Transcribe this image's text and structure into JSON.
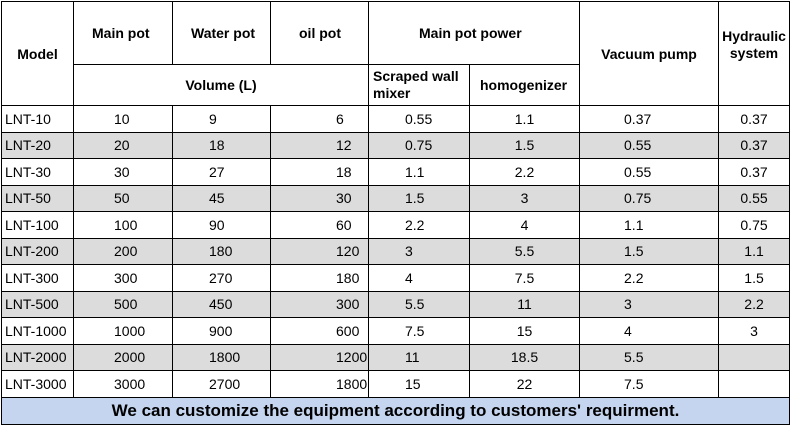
{
  "headers": {
    "model": "Model",
    "main_pot": "Main pot",
    "water_pot": "Water pot",
    "oil_pot": "oil pot",
    "main_pot_power": "Main pot power",
    "vacuum_pump": "Vacuum pump",
    "hydraulic_system": "Hydraulic system",
    "volume": "Volume (L)",
    "scraped_wall_mixer": "Scraped wall mixer",
    "homogenizer": "homogenizer"
  },
  "rows": [
    {
      "model": "LNT-10",
      "main": "10",
      "water": "9",
      "oil": "6",
      "scraped": "0.55",
      "homogenizer": "1.1",
      "vacuum": "0.37",
      "hydraulic": "0.37"
    },
    {
      "model": "LNT-20",
      "main": "20",
      "water": "18",
      "oil": "12",
      "scraped": "0.75",
      "homogenizer": "1.5",
      "vacuum": "0.55",
      "hydraulic": "0.37"
    },
    {
      "model": "LNT-30",
      "main": "30",
      "water": "27",
      "oil": "18",
      "scraped": "1.1",
      "homogenizer": "2.2",
      "vacuum": "0.55",
      "hydraulic": "0.37"
    },
    {
      "model": "LNT-50",
      "main": "50",
      "water": "45",
      "oil": "30",
      "scraped": "1.5",
      "homogenizer": "3",
      "vacuum": "0.75",
      "hydraulic": "0.55"
    },
    {
      "model": "LNT-100",
      "main": "100",
      "water": "90",
      "oil": "60",
      "scraped": "2.2",
      "homogenizer": "4",
      "vacuum": "1.1",
      "hydraulic": "0.75"
    },
    {
      "model": "LNT-200",
      "main": "200",
      "water": "180",
      "oil": "120",
      "scraped": "3",
      "homogenizer": "5.5",
      "vacuum": "1.5",
      "hydraulic": "1.1"
    },
    {
      "model": "LNT-300",
      "main": "300",
      "water": "270",
      "oil": "180",
      "scraped": "4",
      "homogenizer": "7.5",
      "vacuum": "2.2",
      "hydraulic": "1.5"
    },
    {
      "model": "LNT-500",
      "main": "500",
      "water": "450",
      "oil": "300",
      "scraped": "5.5",
      "homogenizer": "11",
      "vacuum": "3",
      "hydraulic": "2.2"
    },
    {
      "model": "LNT-1000",
      "main": "1000",
      "water": "900",
      "oil": "600",
      "scraped": "7.5",
      "homogenizer": "15",
      "vacuum": "4",
      "hydraulic": "3"
    },
    {
      "model": "LNT-2000",
      "main": "2000",
      "water": "1800",
      "oil": "1200",
      "scraped": "11",
      "homogenizer": "18.5",
      "vacuum": "5.5",
      "hydraulic": ""
    },
    {
      "model": "LNT-3000",
      "main": "3000",
      "water": "2700",
      "oil": "1800",
      "scraped": "15",
      "homogenizer": "22",
      "vacuum": "7.5",
      "hydraulic": ""
    }
  ],
  "footer": {
    "text": "We can customize the equipment according to customers' requirment.",
    "background": "#c5d5ef"
  },
  "colors": {
    "shaded_row": "#dcdcdc",
    "border": "#000000"
  }
}
